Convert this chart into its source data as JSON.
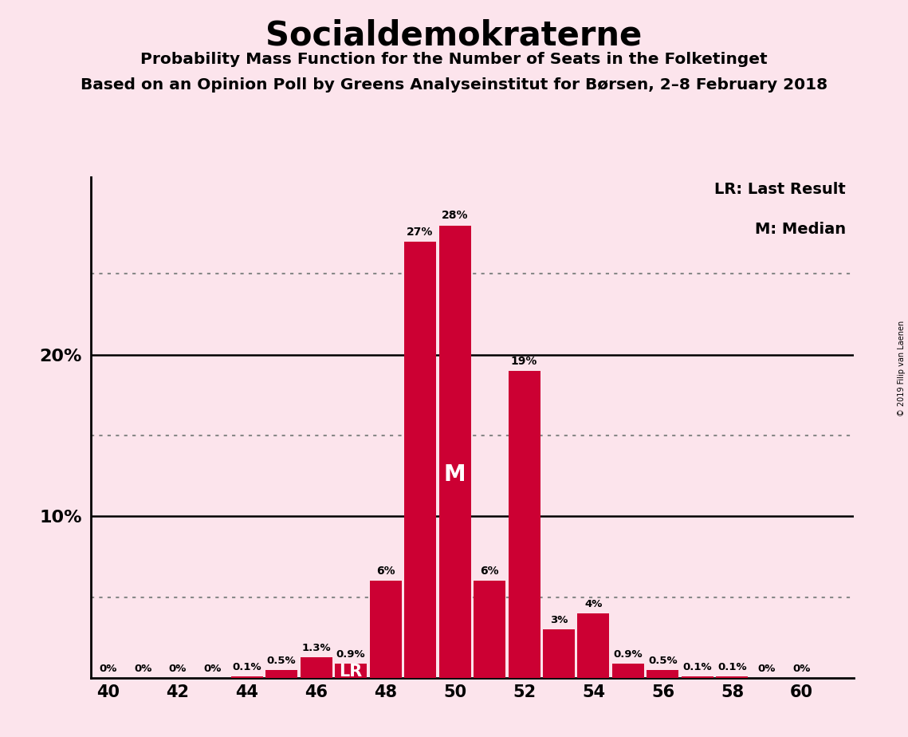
{
  "title": "Socialdemokraterne",
  "subtitle1": "Probability Mass Function for the Number of Seats in the Folketinget",
  "subtitle2": "Based on an Opinion Poll by Greens Analyseinstitut for Børsen, 2–8 February 2018",
  "copyright": "© 2019 Filip van Laenen",
  "seats": [
    40,
    41,
    42,
    43,
    44,
    45,
    46,
    47,
    48,
    49,
    50,
    51,
    52,
    53,
    54,
    55,
    56,
    57,
    58,
    59,
    60
  ],
  "probabilities": [
    0.0,
    0.0,
    0.0,
    0.0,
    0.1,
    0.5,
    1.3,
    0.9,
    6.0,
    27.0,
    28.0,
    6.0,
    19.0,
    3.0,
    4.0,
    0.9,
    0.5,
    0.1,
    0.1,
    0.0,
    0.0
  ],
  "bar_color": "#cc0033",
  "background_color": "#fce4ec",
  "label_color_inside": "#ffffff",
  "label_color_outside": "#000000",
  "lr_seat": 47,
  "median_seat": 50,
  "ymax": 31,
  "xlim_left": 39.5,
  "xlim_right": 61.5,
  "dotted_lines": [
    5,
    15,
    25
  ],
  "solid_lines": [
    10,
    20
  ],
  "legend_lr": "LR: Last Result",
  "legend_m": "M: Median"
}
